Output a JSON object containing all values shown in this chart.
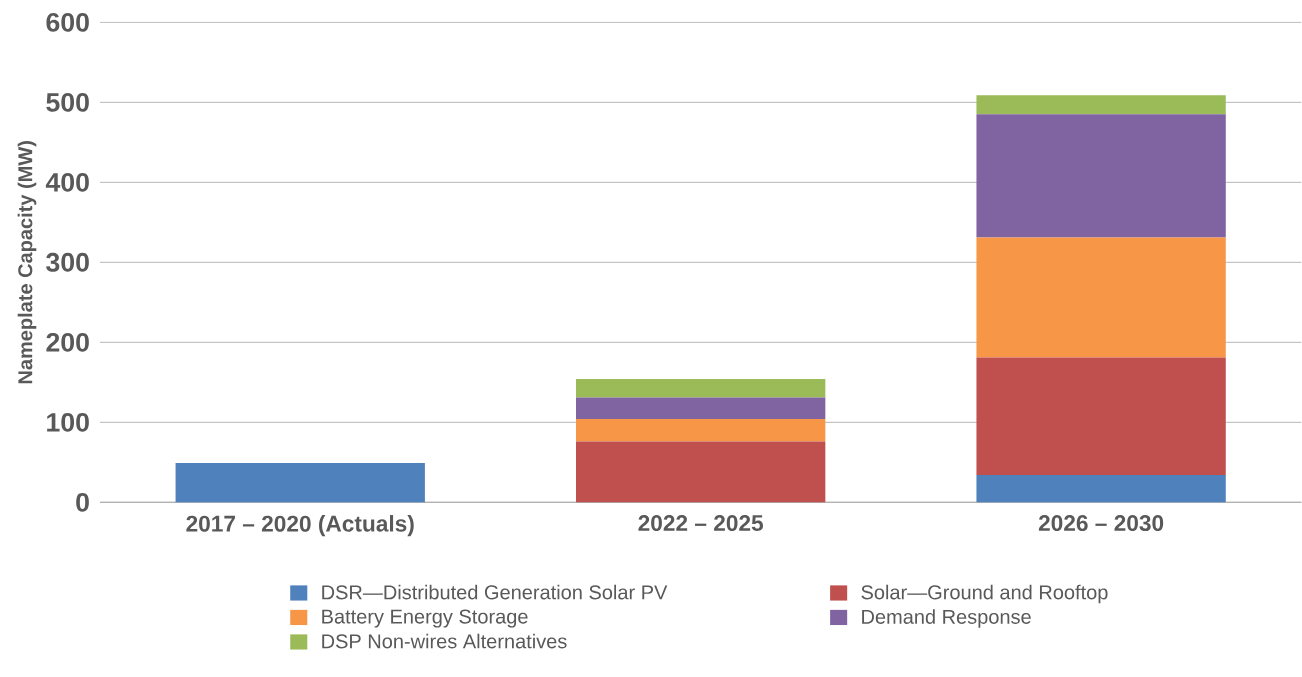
{
  "chart_data": {
    "type": "bar",
    "stacked": true,
    "ylabel": "Nameplate Capacity (MW)",
    "categories": [
      "2017 – 2020 (Actuals)",
      "2022 – 2025",
      "2026 – 2030"
    ],
    "series": [
      {
        "name": "DSR—Distributed Generation Solar PV",
        "color": "#4f81bd",
        "values": [
          49,
          null,
          34
        ]
      },
      {
        "name": "Solar—Ground and Rooftop",
        "color": "#c0504d",
        "values": [
          null,
          76,
          147
        ]
      },
      {
        "name": "Battery Energy Storage",
        "color": "#f79646",
        "values": [
          null,
          28,
          150
        ]
      },
      {
        "name": "Demand Response",
        "color": "#8064a2",
        "values": [
          null,
          27,
          154
        ]
      },
      {
        "name": "DSP Non-wires Alternatives",
        "color": "#9bbb59",
        "values": [
          null,
          23,
          24
        ]
      }
    ],
    "ylim": [
      0,
      600
    ],
    "yticks": [
      0,
      100,
      200,
      300,
      400,
      500,
      600
    ],
    "grid": "y",
    "legend": "bottom"
  }
}
